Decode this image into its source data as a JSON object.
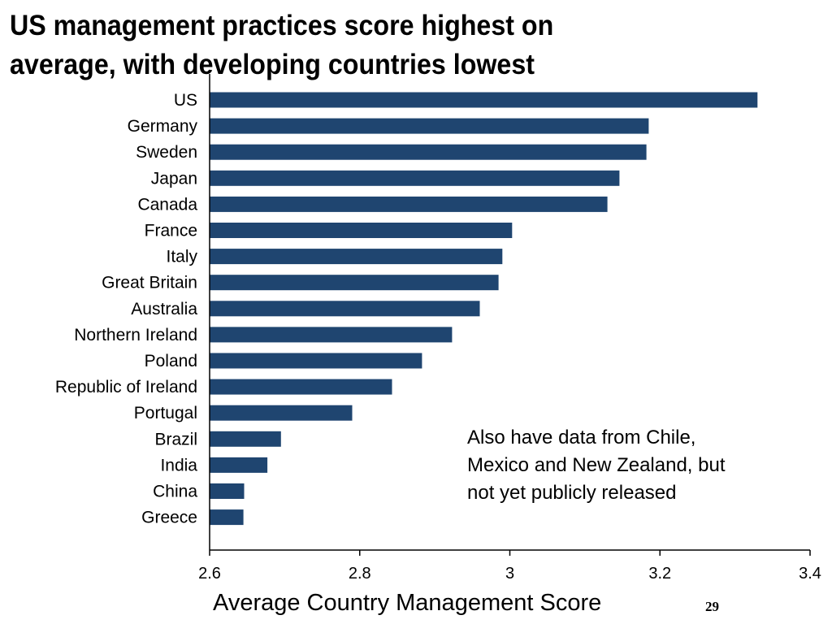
{
  "slide": {
    "title_line1": "US management practices score highest on",
    "title_line2": "average, with developing countries lowest",
    "annotation_line1": "Also have data from Chile,",
    "annotation_line2": "Mexico and New Zealand, but",
    "annotation_line3": "not yet publicly released",
    "page_number": "29"
  },
  "colors": {
    "bar": "#1f4570",
    "axis": "#000000"
  },
  "chart_data": {
    "type": "bar",
    "orientation": "horizontal",
    "title": "US management practices score highest on average, with developing countries lowest",
    "xlabel": "Average Country Management Score",
    "ylabel": "",
    "xlim": [
      2.6,
      3.4
    ],
    "x_ticks": [
      2.6,
      2.8,
      3,
      3.2,
      3.4
    ],
    "x_tick_labels": [
      "2.6",
      "2.8",
      "3",
      "3.2",
      "3.4"
    ],
    "grid": false,
    "categories": [
      "US",
      "Germany",
      "Sweden",
      "Japan",
      "Canada",
      "France",
      "Italy",
      "Great Britain",
      "Australia",
      "Northern Ireland",
      "Poland",
      "Republic of Ireland",
      "Portugal",
      "Brazil",
      "India",
      "China",
      "Greece"
    ],
    "values": [
      3.33,
      3.185,
      3.182,
      3.146,
      3.13,
      3.003,
      2.99,
      2.985,
      2.96,
      2.923,
      2.883,
      2.843,
      2.79,
      2.695,
      2.677,
      2.646,
      2.645
    ]
  }
}
